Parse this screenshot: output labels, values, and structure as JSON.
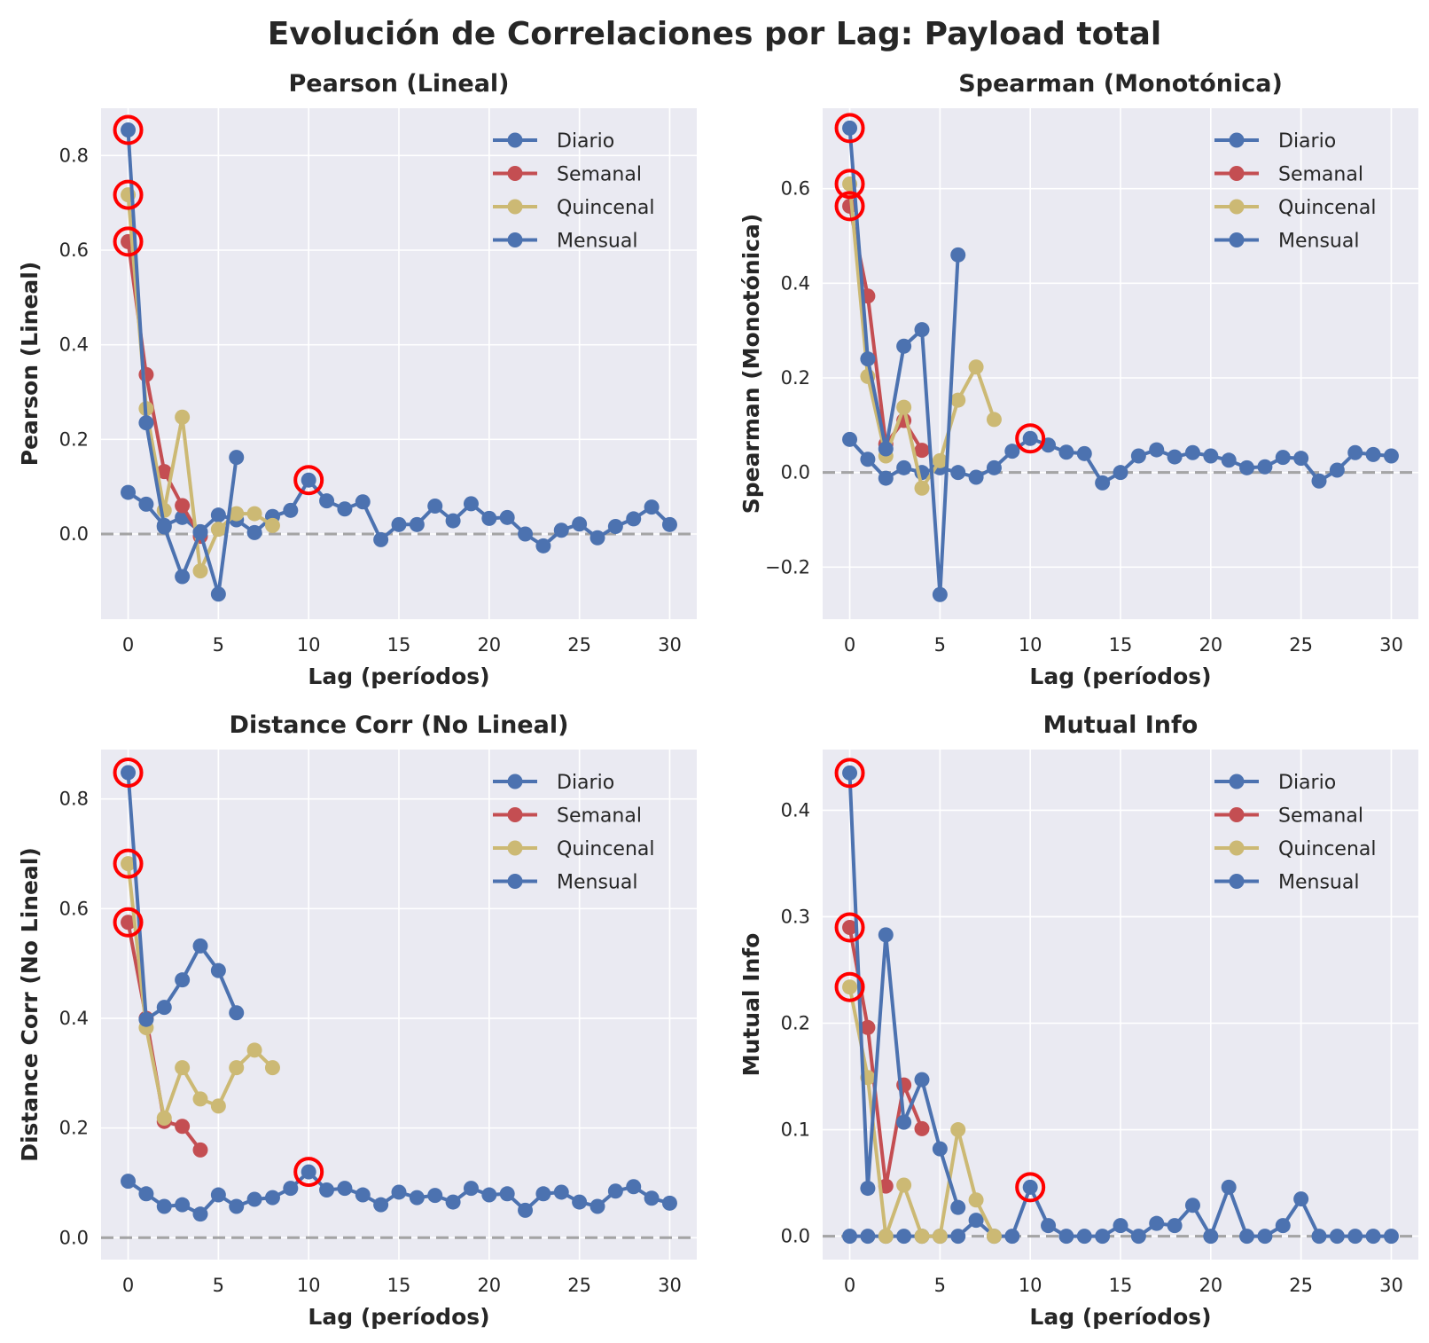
{
  "title": "Evolución de Correlaciones por Lag: Payload total",
  "colors": {
    "diario": "#4c72b0",
    "semanal": "#c44e52",
    "quincenal": "#ccb974",
    "mensual": "#4c72b0",
    "highlight": "#ff0000",
    "zero_line": "#808080",
    "panel_bg": "#eaeaf2"
  },
  "legend": {
    "placement": "upper-right",
    "entries": [
      "Diario",
      "Semanal",
      "Quincenal",
      "Mensual"
    ]
  },
  "chart_data": [
    {
      "type": "line",
      "title": "Pearson (Lineal)",
      "xlabel": "Lag (períodos)",
      "ylabel": "Pearson (Lineal)",
      "xlim": [
        -1.5,
        31.5
      ],
      "ylim": [
        -0.18,
        0.9
      ],
      "xticks": [
        0,
        5,
        10,
        15,
        20,
        25,
        30
      ],
      "yticks": [
        0.0,
        0.2,
        0.4,
        0.6,
        0.8
      ],
      "ytick_labels": [
        "0.0",
        "0.2",
        "0.4",
        "0.6",
        "0.8"
      ],
      "grid": true,
      "series": [
        {
          "name": "Diario",
          "color": "diario",
          "x": [
            0,
            1,
            2,
            3,
            4,
            5,
            6,
            7,
            8,
            9,
            10,
            11,
            12,
            13,
            14,
            15,
            16,
            17,
            18,
            19,
            20,
            21,
            22,
            23,
            24,
            25,
            26,
            27,
            28,
            29,
            30
          ],
          "values": [
            0.088,
            0.063,
            0.018,
            0.035,
            0.005,
            0.04,
            0.03,
            0.003,
            0.037,
            0.05,
            0.114,
            0.07,
            0.053,
            0.068,
            -0.012,
            0.02,
            0.02,
            0.059,
            0.028,
            0.064,
            0.033,
            0.035,
            0.0,
            -0.025,
            0.008,
            0.021,
            -0.008,
            0.016,
            0.032,
            0.057,
            0.02
          ]
        },
        {
          "name": "Semanal",
          "color": "semanal",
          "x": [
            0,
            1,
            2,
            3,
            4
          ],
          "values": [
            0.618,
            0.337,
            0.132,
            0.06,
            -0.005
          ]
        },
        {
          "name": "Quincenal",
          "color": "quincenal",
          "x": [
            0,
            1,
            2,
            3,
            4,
            5,
            6,
            7,
            8
          ],
          "values": [
            0.717,
            0.265,
            0.05,
            0.247,
            -0.078,
            0.01,
            0.043,
            0.043,
            0.018
          ]
        },
        {
          "name": "Mensual",
          "color": "mensual",
          "x": [
            0,
            1,
            2,
            3,
            4,
            5,
            6
          ],
          "values": [
            0.854,
            0.235,
            0.015,
            -0.09,
            0.003,
            -0.127,
            0.162
          ]
        }
      ],
      "highlights": [
        {
          "x": 0,
          "y": 0.854
        },
        {
          "x": 0,
          "y": 0.717
        },
        {
          "x": 0,
          "y": 0.618
        },
        {
          "x": 10,
          "y": 0.114
        }
      ]
    },
    {
      "type": "line",
      "title": "Spearman (Monotónica)",
      "xlabel": "Lag (períodos)",
      "ylabel": "Spearman (Monotónica)",
      "xlim": [
        -1.5,
        31.5
      ],
      "ylim": [
        -0.31,
        0.77
      ],
      "xticks": [
        0,
        5,
        10,
        15,
        20,
        25,
        30
      ],
      "yticks": [
        -0.2,
        0.0,
        0.2,
        0.4,
        0.6
      ],
      "ytick_labels": [
        "−0.2",
        "0.0",
        "0.2",
        "0.4",
        "0.6"
      ],
      "grid": true,
      "series": [
        {
          "name": "Diario",
          "color": "diario",
          "x": [
            0,
            1,
            2,
            3,
            4,
            5,
            6,
            7,
            8,
            9,
            10,
            11,
            12,
            13,
            14,
            15,
            16,
            17,
            18,
            19,
            20,
            21,
            22,
            23,
            24,
            25,
            26,
            27,
            28,
            29,
            30
          ],
          "values": [
            0.07,
            0.028,
            -0.012,
            0.01,
            0.0,
            0.01,
            0.0,
            -0.01,
            0.01,
            0.045,
            0.072,
            0.058,
            0.043,
            0.04,
            -0.022,
            0.0,
            0.035,
            0.048,
            0.033,
            0.042,
            0.035,
            0.026,
            0.01,
            0.012,
            0.032,
            0.03,
            -0.018,
            0.005,
            0.042,
            0.038,
            0.035
          ]
        },
        {
          "name": "Semanal",
          "color": "semanal",
          "x": [
            0,
            1,
            2,
            3,
            4
          ],
          "values": [
            0.563,
            0.373,
            0.06,
            0.11,
            0.047
          ]
        },
        {
          "name": "Quincenal",
          "color": "quincenal",
          "x": [
            0,
            1,
            2,
            3,
            4,
            5,
            6,
            7,
            8
          ],
          "values": [
            0.61,
            0.203,
            0.035,
            0.138,
            -0.033,
            0.025,
            0.153,
            0.223,
            0.112
          ]
        },
        {
          "name": "Mensual",
          "color": "mensual",
          "x": [
            0,
            1,
            2,
            3,
            4,
            5,
            6
          ],
          "values": [
            0.728,
            0.24,
            0.05,
            0.267,
            0.302,
            -0.258,
            0.46
          ]
        }
      ],
      "highlights": [
        {
          "x": 0,
          "y": 0.728
        },
        {
          "x": 0,
          "y": 0.61
        },
        {
          "x": 0,
          "y": 0.563
        },
        {
          "x": 10,
          "y": 0.072
        }
      ]
    },
    {
      "type": "line",
      "title": "Distance Corr (No Lineal)",
      "xlabel": "Lag (períodos)",
      "ylabel": "Distance Corr (No Lineal)",
      "xlim": [
        -1.5,
        31.5
      ],
      "ylim": [
        -0.04,
        0.89
      ],
      "xticks": [
        0,
        5,
        10,
        15,
        20,
        25,
        30
      ],
      "yticks": [
        0.0,
        0.2,
        0.4,
        0.6,
        0.8
      ],
      "ytick_labels": [
        "0.0",
        "0.2",
        "0.4",
        "0.6",
        "0.8"
      ],
      "grid": true,
      "series": [
        {
          "name": "Diario",
          "color": "diario",
          "x": [
            0,
            1,
            2,
            3,
            4,
            5,
            6,
            7,
            8,
            9,
            10,
            11,
            12,
            13,
            14,
            15,
            16,
            17,
            18,
            19,
            20,
            21,
            22,
            23,
            24,
            25,
            26,
            27,
            28,
            29,
            30
          ],
          "values": [
            0.103,
            0.08,
            0.057,
            0.06,
            0.043,
            0.078,
            0.057,
            0.07,
            0.073,
            0.09,
            0.12,
            0.087,
            0.09,
            0.078,
            0.06,
            0.083,
            0.073,
            0.077,
            0.065,
            0.09,
            0.078,
            0.08,
            0.05,
            0.08,
            0.083,
            0.065,
            0.057,
            0.085,
            0.093,
            0.072,
            0.063
          ]
        },
        {
          "name": "Semanal",
          "color": "semanal",
          "x": [
            0,
            1,
            2,
            3,
            4
          ],
          "values": [
            0.575,
            0.4,
            0.212,
            0.203,
            0.16
          ]
        },
        {
          "name": "Quincenal",
          "color": "quincenal",
          "x": [
            0,
            1,
            2,
            3,
            4,
            5,
            6,
            7,
            8
          ],
          "values": [
            0.682,
            0.383,
            0.218,
            0.31,
            0.253,
            0.24,
            0.31,
            0.342,
            0.31
          ]
        },
        {
          "name": "Mensual",
          "color": "mensual",
          "x": [
            0,
            1,
            2,
            3,
            4,
            5,
            6
          ],
          "values": [
            0.848,
            0.398,
            0.42,
            0.47,
            0.532,
            0.487,
            0.41
          ]
        }
      ],
      "highlights": [
        {
          "x": 0,
          "y": 0.848
        },
        {
          "x": 0,
          "y": 0.682
        },
        {
          "x": 0,
          "y": 0.575
        },
        {
          "x": 10,
          "y": 0.12
        }
      ]
    },
    {
      "type": "line",
      "title": "Mutual Info",
      "xlabel": "Lag (períodos)",
      "ylabel": "Mutual Info",
      "xlim": [
        -1.5,
        31.5
      ],
      "ylim": [
        -0.022,
        0.457
      ],
      "xticks": [
        0,
        5,
        10,
        15,
        20,
        25,
        30
      ],
      "yticks": [
        0.0,
        0.1,
        0.2,
        0.3,
        0.4
      ],
      "ytick_labels": [
        "0.0",
        "0.1",
        "0.2",
        "0.3",
        "0.4"
      ],
      "grid": true,
      "series": [
        {
          "name": "Diario",
          "color": "diario",
          "x": [
            0,
            1,
            2,
            3,
            4,
            5,
            6,
            7,
            8,
            9,
            10,
            11,
            12,
            13,
            14,
            15,
            16,
            17,
            18,
            19,
            20,
            21,
            22,
            23,
            24,
            25,
            26,
            27,
            28,
            29,
            30
          ],
          "values": [
            0.0,
            0.0,
            0.0,
            0.0,
            0.0,
            0.0,
            0.0,
            0.015,
            0.0,
            0.0,
            0.046,
            0.01,
            0.0,
            0.0,
            0.0,
            0.01,
            0.0,
            0.012,
            0.01,
            0.029,
            0.0,
            0.046,
            0.0,
            0.0,
            0.01,
            0.035,
            0.0,
            0.0,
            0.0,
            0.0,
            0.0
          ]
        },
        {
          "name": "Semanal",
          "color": "semanal",
          "x": [
            0,
            1,
            2,
            3,
            4
          ],
          "values": [
            0.29,
            0.196,
            0.047,
            0.142,
            0.101
          ]
        },
        {
          "name": "Quincenal",
          "color": "quincenal",
          "x": [
            0,
            1,
            2,
            3,
            4,
            5,
            6,
            7,
            8
          ],
          "values": [
            0.234,
            0.149,
            0.0,
            0.048,
            0.0,
            0.0,
            0.1,
            0.034,
            0.0
          ]
        },
        {
          "name": "Mensual",
          "color": "mensual",
          "x": [
            0,
            1,
            2,
            3,
            4,
            5,
            6
          ],
          "values": [
            0.435,
            0.045,
            0.283,
            0.107,
            0.147,
            0.082,
            0.027
          ]
        }
      ],
      "highlights": [
        {
          "x": 0,
          "y": 0.435
        },
        {
          "x": 0,
          "y": 0.29
        },
        {
          "x": 0,
          "y": 0.234
        },
        {
          "x": 10,
          "y": 0.046
        }
      ]
    }
  ]
}
